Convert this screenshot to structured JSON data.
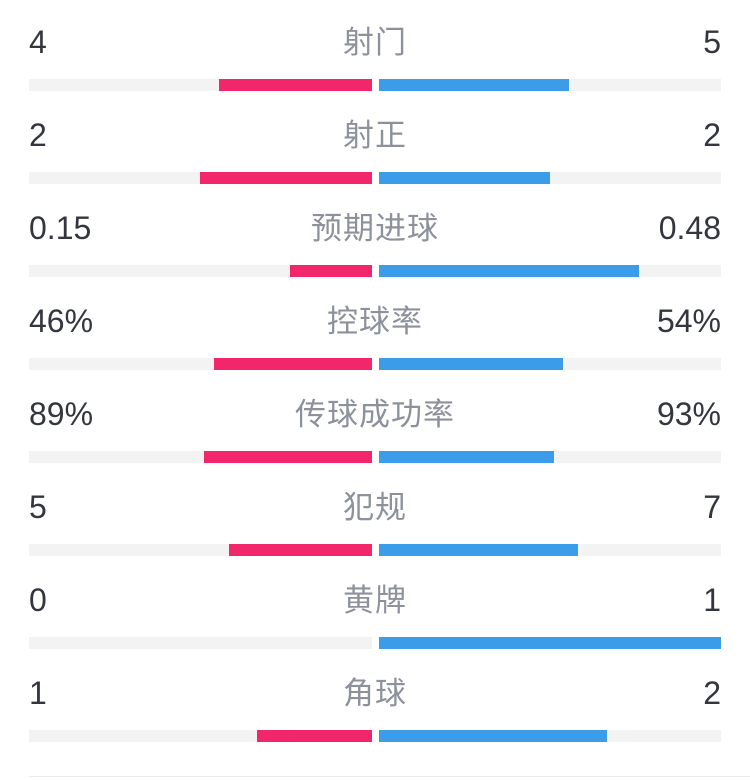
{
  "colors": {
    "home_bar": "#f2266b",
    "away_bar": "#3b9cea",
    "track": "#f3f3f4",
    "value_text": "#33363c",
    "label_text": "#8d919c",
    "divider": "#ececee"
  },
  "stats": [
    {
      "label": "射门",
      "home": "4",
      "away": "5",
      "home_share": 44.4,
      "away_share": 55.6
    },
    {
      "label": "射正",
      "home": "2",
      "away": "2",
      "home_share": 50,
      "away_share": 50
    },
    {
      "label": "预期进球",
      "home": "0.15",
      "away": "0.48",
      "home_share": 23.8,
      "away_share": 76.2
    },
    {
      "label": "控球率",
      "home": "46%",
      "away": "54%",
      "home_share": 46,
      "away_share": 54
    },
    {
      "label": "传球成功率",
      "home": "89%",
      "away": "93%",
      "home_share": 48.9,
      "away_share": 51.1
    },
    {
      "label": "犯规",
      "home": "5",
      "away": "7",
      "home_share": 41.7,
      "away_share": 58.3
    },
    {
      "label": "黄牌",
      "home": "0",
      "away": "1",
      "home_share": 0,
      "away_share": 100
    },
    {
      "label": "角球",
      "home": "1",
      "away": "2",
      "home_share": 33.3,
      "away_share": 66.7
    }
  ],
  "chart_data": {
    "type": "bar",
    "variant": "paired-horizontal-comparison",
    "categories": [
      "射门",
      "射正",
      "预期进球",
      "控球率",
      "传球成功率",
      "犯规",
      "黄牌",
      "角球"
    ],
    "series": [
      {
        "name": "home-left",
        "color": "#f2266b",
        "values": [
          4,
          2,
          0.15,
          46,
          89,
          5,
          0,
          1
        ],
        "display": [
          "4",
          "2",
          "0.15",
          "46%",
          "89%",
          "5",
          "0",
          "1"
        ]
      },
      {
        "name": "away-right",
        "color": "#3b9cea",
        "values": [
          5,
          2,
          0.48,
          54,
          93,
          7,
          1,
          2
        ],
        "display": [
          "5",
          "2",
          "0.48",
          "54%",
          "93%",
          "7",
          "1",
          "2"
        ]
      }
    ],
    "title": "",
    "xlabel": "",
    "ylabel": "",
    "legend": false,
    "grid": false,
    "note": "Each bar length equals the side's share of the pair sum, drawn from the center outward on a light gray track"
  }
}
